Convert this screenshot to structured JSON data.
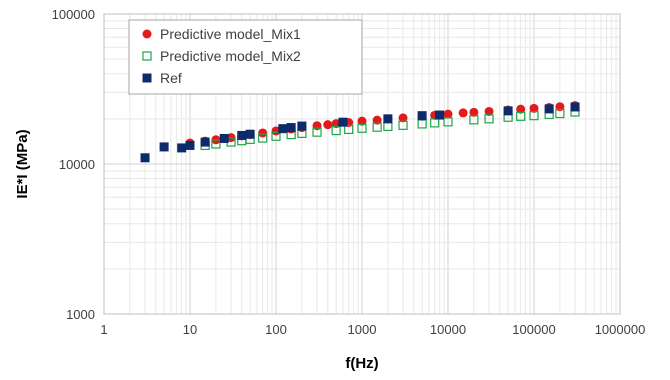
{
  "chart_data": {
    "type": "scatter",
    "title": "",
    "xlabel": "f(Hz)",
    "ylabel": "IE*I (MPa)",
    "xscale": "log",
    "yscale": "log",
    "xlim": [
      1,
      1000000
    ],
    "ylim": [
      1000,
      100000
    ],
    "x_ticks": [
      "1",
      "10",
      "100",
      "1000",
      "10000",
      "100000",
      "1000000"
    ],
    "y_ticks": [
      "1000",
      "10000",
      "100000"
    ],
    "grid": "major and minor",
    "legend_position": "top-left",
    "series": [
      {
        "name": "Predictive model_Mix1",
        "marker": "filled-circle",
        "color": "#e31a1c",
        "points": [
          [
            5,
            13000
          ],
          [
            10,
            13800
          ],
          [
            15,
            14200
          ],
          [
            20,
            14500
          ],
          [
            25,
            14800
          ],
          [
            30,
            15000
          ],
          [
            40,
            15400
          ],
          [
            50,
            15700
          ],
          [
            70,
            16100
          ],
          [
            100,
            16600
          ],
          [
            150,
            17100
          ],
          [
            200,
            17500
          ],
          [
            300,
            18000
          ],
          [
            400,
            18300
          ],
          [
            500,
            18600
          ],
          [
            700,
            18900
          ],
          [
            1000,
            19300
          ],
          [
            1500,
            19600
          ],
          [
            2000,
            20000
          ],
          [
            3000,
            20300
          ],
          [
            5000,
            20800
          ],
          [
            7000,
            21100
          ],
          [
            10000,
            21500
          ],
          [
            15000,
            21900
          ],
          [
            20000,
            22100
          ],
          [
            30000,
            22400
          ],
          [
            50000,
            22900
          ],
          [
            70000,
            23200
          ],
          [
            100000,
            23500
          ],
          [
            150000,
            23800
          ],
          [
            200000,
            24100
          ],
          [
            300000,
            24500
          ]
        ]
      },
      {
        "name": "Predictive model_Mix2",
        "marker": "open-square",
        "color": "#1fa34a",
        "points": [
          [
            15,
            13300
          ],
          [
            20,
            13600
          ],
          [
            30,
            14000
          ],
          [
            40,
            14300
          ],
          [
            50,
            14600
          ],
          [
            70,
            14900
          ],
          [
            100,
            15300
          ],
          [
            150,
            15700
          ],
          [
            200,
            16000
          ],
          [
            300,
            16300
          ],
          [
            500,
            16700
          ],
          [
            700,
            17000
          ],
          [
            1000,
            17300
          ],
          [
            1500,
            17600
          ],
          [
            2000,
            17800
          ],
          [
            3000,
            18100
          ],
          [
            5000,
            18500
          ],
          [
            7000,
            18800
          ],
          [
            10000,
            19100
          ],
          [
            20000,
            19700
          ],
          [
            30000,
            20000
          ],
          [
            50000,
            20500
          ],
          [
            70000,
            20800
          ],
          [
            100000,
            21000
          ],
          [
            150000,
            21400
          ],
          [
            200000,
            21700
          ],
          [
            300000,
            22200
          ]
        ]
      },
      {
        "name": "Ref",
        "marker": "filled-square",
        "color": "#0d2a6b",
        "points": [
          [
            3,
            11000
          ],
          [
            5,
            13000
          ],
          [
            8,
            12800
          ],
          [
            10,
            13300
          ],
          [
            15,
            14000
          ],
          [
            25,
            14800
          ],
          [
            40,
            15500
          ],
          [
            50,
            15800
          ],
          [
            120,
            17200
          ],
          [
            150,
            17500
          ],
          [
            200,
            17900
          ],
          [
            600,
            19000
          ],
          [
            2000,
            20000
          ],
          [
            5000,
            21000
          ],
          [
            8000,
            21200
          ],
          [
            50000,
            22600
          ],
          [
            150000,
            23300
          ],
          [
            300000,
            24000
          ]
        ]
      }
    ]
  }
}
